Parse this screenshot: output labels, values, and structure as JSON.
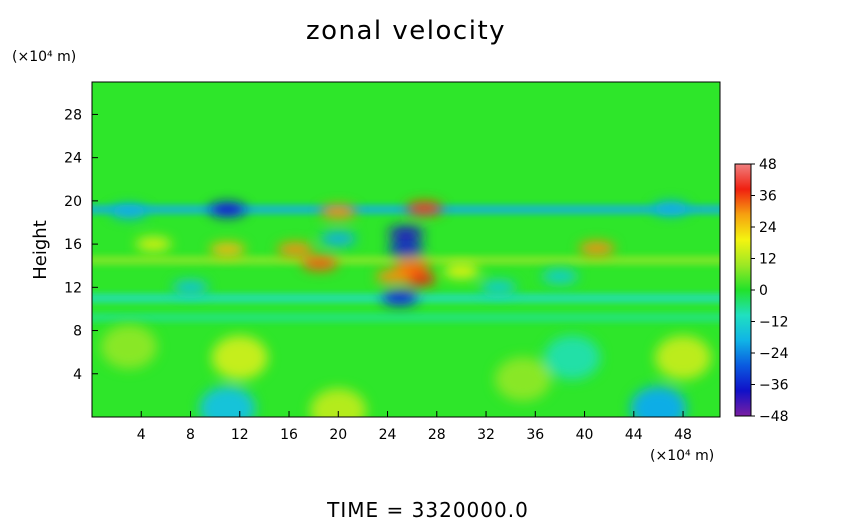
{
  "chart_data": {
    "type": "heatmap",
    "title": "zonal velocity",
    "ylabel": "Height",
    "x_unit": "(×10⁴ m)",
    "y_unit": "(×10⁴ m)",
    "footer": "TIME  =  3320000.0",
    "xlim": [
      0,
      51
    ],
    "ylim": [
      0,
      31
    ],
    "x_ticks": [
      4,
      8,
      12,
      16,
      20,
      24,
      28,
      32,
      36,
      40,
      44,
      48
    ],
    "y_ticks": [
      4,
      8,
      12,
      16,
      20,
      24,
      28
    ],
    "colorbar": {
      "ticks": [
        48,
        36,
        24,
        12,
        0,
        -12,
        -24,
        -36,
        -48
      ],
      "min": -48,
      "max": 48,
      "colormap": [
        "#7a1fa2",
        "#1010c8",
        "#0a5ae0",
        "#10b4e6",
        "#20e0c0",
        "#22e22a",
        "#9ee824",
        "#f4f410",
        "#f6a010",
        "#f02010",
        "#f08080"
      ]
    },
    "features": [
      {
        "x": 12,
        "y": 5.5,
        "value": 14
      },
      {
        "x": 48,
        "y": 5.5,
        "value": 13
      },
      {
        "x": 3,
        "y": 6.5,
        "value": 8
      },
      {
        "x": 35,
        "y": 3.5,
        "value": 8
      },
      {
        "x": 39,
        "y": 5.5,
        "value": -8
      },
      {
        "x": 11,
        "y": 0.8,
        "value": -16
      },
      {
        "x": 46,
        "y": 0.8,
        "value": -20
      },
      {
        "x": 20,
        "y": 0.6,
        "value": 12
      },
      {
        "x": 11,
        "y": 19.2,
        "value": -38
      },
      {
        "x": 3,
        "y": 19,
        "value": -20
      },
      {
        "x": 47,
        "y": 19.3,
        "value": -20
      },
      {
        "x": 27,
        "y": 19.3,
        "value": 36
      },
      {
        "x": 20,
        "y": 19,
        "value": 30
      },
      {
        "x": 25.5,
        "y": 17,
        "value": -40
      },
      {
        "x": 25.5,
        "y": 15.6,
        "value": -36
      },
      {
        "x": 26,
        "y": 14,
        "value": 32
      },
      {
        "x": 26.5,
        "y": 12.8,
        "value": 38
      },
      {
        "x": 24.5,
        "y": 13,
        "value": 30
      },
      {
        "x": 18.5,
        "y": 14.2,
        "value": 34
      },
      {
        "x": 16.5,
        "y": 15.5,
        "value": 30
      },
      {
        "x": 11,
        "y": 15.5,
        "value": 26
      },
      {
        "x": 41,
        "y": 15.6,
        "value": 30
      },
      {
        "x": 25,
        "y": 11,
        "value": -36
      },
      {
        "x": 8,
        "y": 12,
        "value": -16
      },
      {
        "x": 33,
        "y": 12,
        "value": -14
      },
      {
        "x": 20,
        "y": 16.5,
        "value": -20
      },
      {
        "x": 5,
        "y": 16,
        "value": 16
      },
      {
        "x": 30,
        "y": 13.5,
        "value": 18
      },
      {
        "x": 38,
        "y": 13,
        "value": -14
      }
    ],
    "bands": [
      {
        "y": 19.2,
        "value": -20
      },
      {
        "y": 11,
        "value": -10
      },
      {
        "y": 9.2,
        "value": -6
      },
      {
        "y": 14.5,
        "value": 8
      }
    ]
  }
}
